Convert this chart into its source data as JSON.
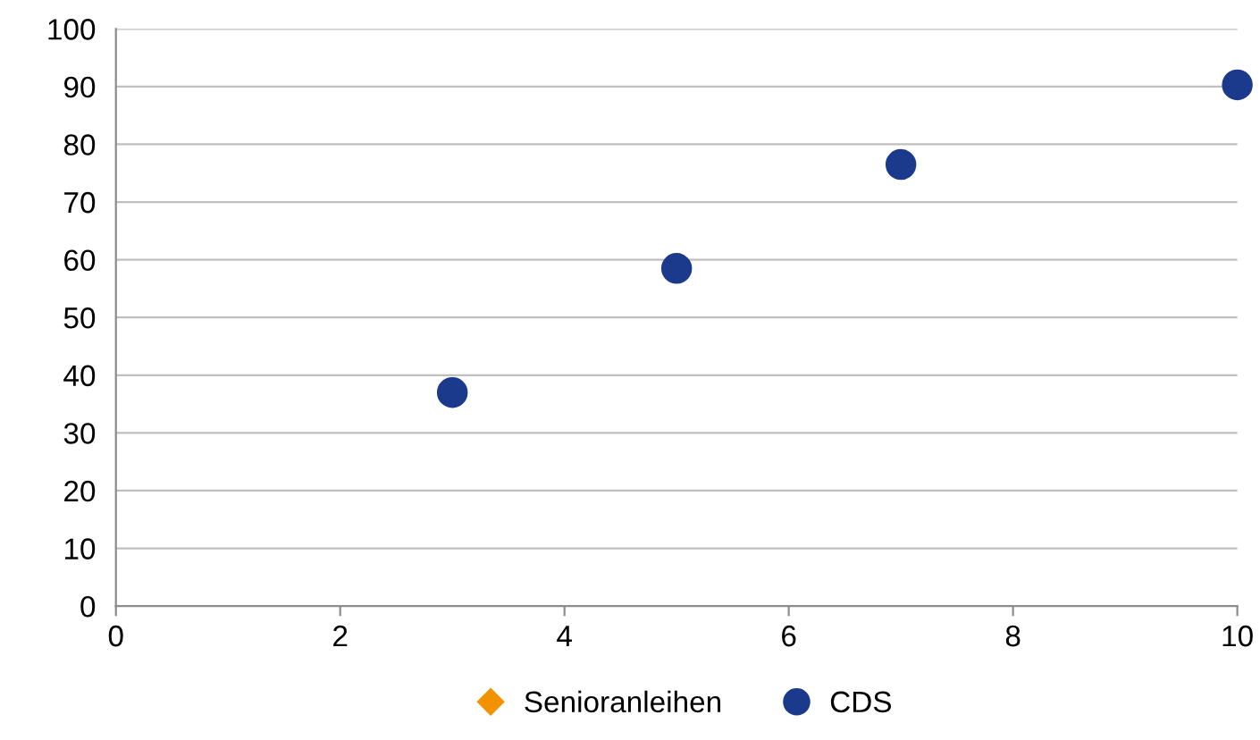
{
  "chart_data": {
    "type": "scatter",
    "series": [
      {
        "name": "Senioranleihen",
        "color": "#f39200",
        "marker": "diamond"
      },
      {
        "name": "CDS",
        "color": "#1b3a8c",
        "marker": "circle",
        "x": [
          3,
          5,
          7,
          10
        ],
        "values": [
          37,
          58.5,
          76.5,
          90.3
        ]
      }
    ],
    "xlim": [
      0,
      10
    ],
    "xticks": [
      0,
      2,
      4,
      6,
      8,
      10
    ],
    "ylim": [
      0,
      100
    ],
    "yticks": [
      0,
      10,
      20,
      30,
      40,
      50,
      60,
      70,
      80,
      90,
      100
    ],
    "grid": "y",
    "legend": "bottom"
  }
}
